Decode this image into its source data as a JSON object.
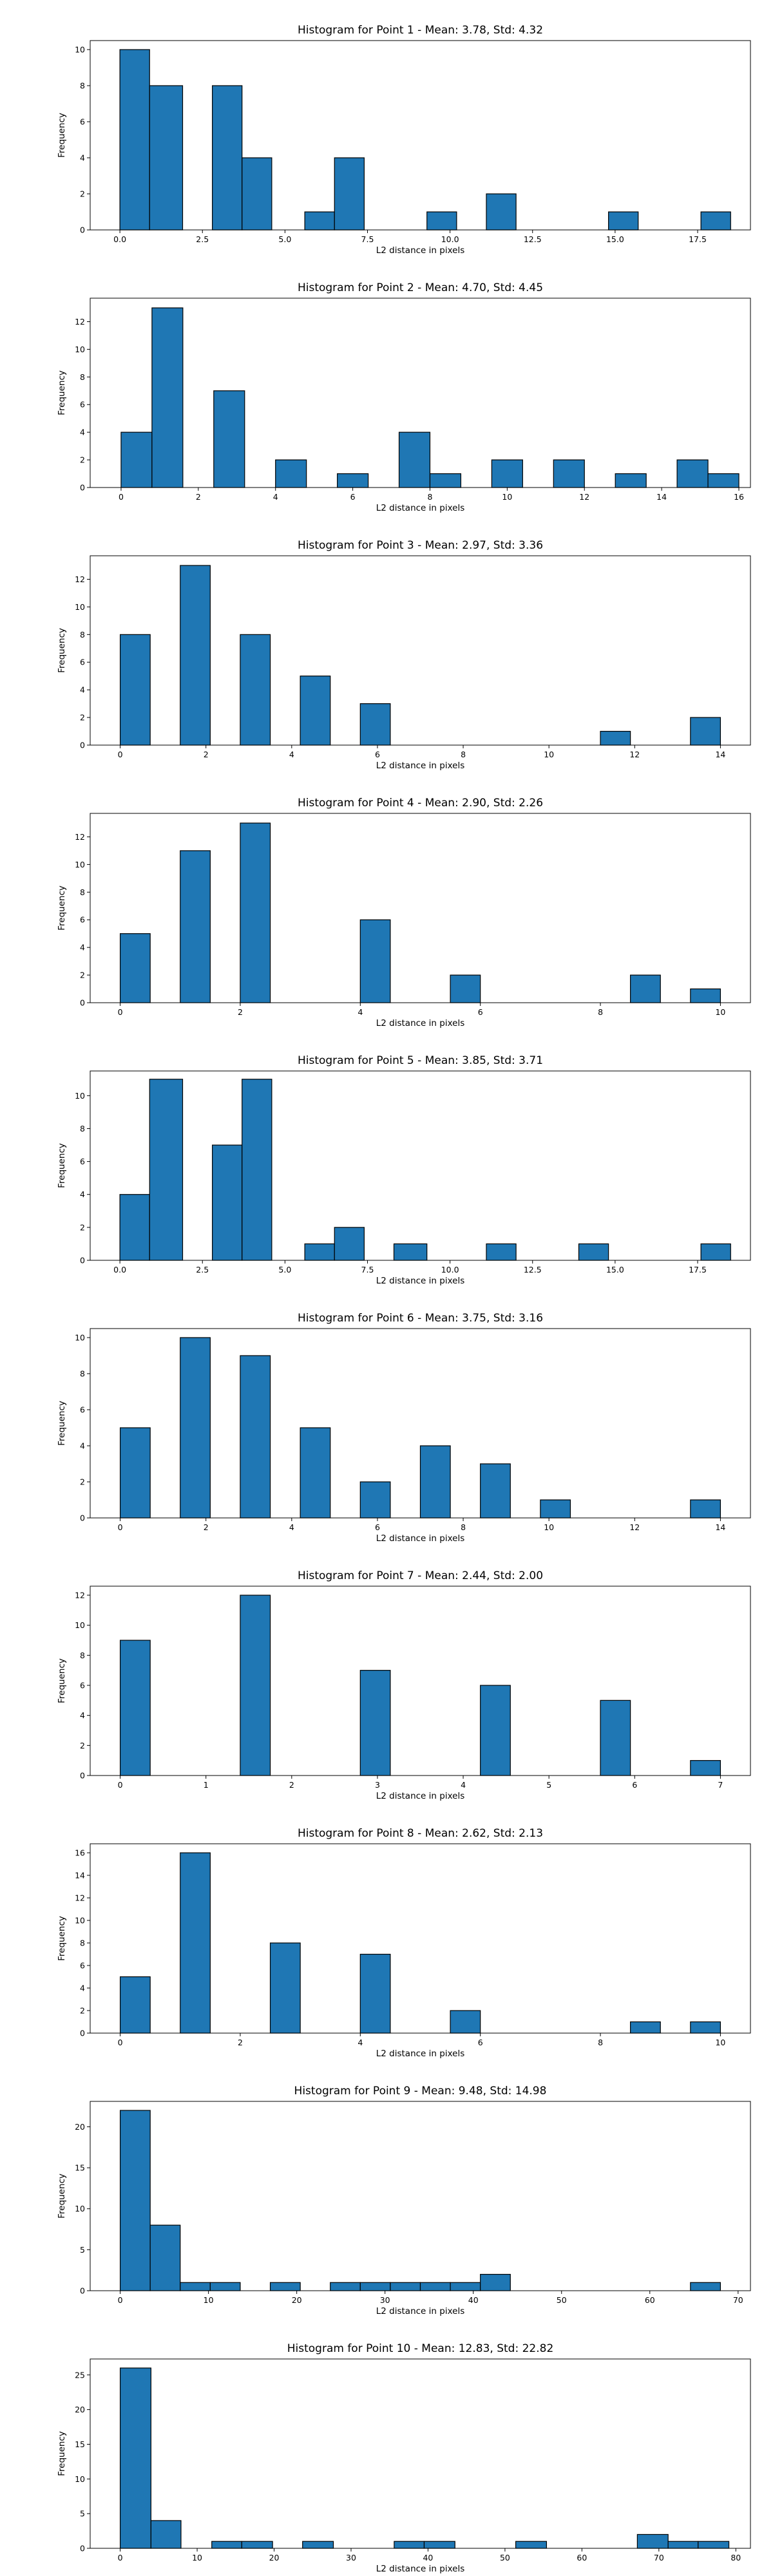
{
  "figure": {
    "background": "#ffffff",
    "bar_color": "#1f77b4",
    "edge_color": "#000000"
  },
  "chart_data": [
    {
      "type": "bar",
      "title": "Histogram for Point 1 - Mean: 3.78, Std: 4.32",
      "xlabel": "L2 distance in pixels",
      "ylabel": "Frequency",
      "xlim": [
        -0.9,
        19.1
      ],
      "ylim": [
        0,
        10.5
      ],
      "xticks": [
        0,
        2.5,
        5,
        7.5,
        10,
        12.5,
        15,
        17.5
      ],
      "xtick_labels": [
        "0.0",
        "2.5",
        "5.0",
        "7.5",
        "10.0",
        "12.5",
        "15.0",
        "17.5"
      ],
      "yticks": [
        0,
        2,
        4,
        6,
        8,
        10
      ],
      "bins": [
        {
          "x0": 0.0,
          "x1": 0.9,
          "count": 10
        },
        {
          "x0": 0.9,
          "x1": 1.9,
          "count": 8
        },
        {
          "x0": 2.8,
          "x1": 3.7,
          "count": 8
        },
        {
          "x0": 3.7,
          "x1": 4.6,
          "count": 4
        },
        {
          "x0": 5.6,
          "x1": 6.5,
          "count": 1
        },
        {
          "x0": 6.5,
          "x1": 7.4,
          "count": 4
        },
        {
          "x0": 9.3,
          "x1": 10.2,
          "count": 1
        },
        {
          "x0": 11.1,
          "x1": 12.0,
          "count": 2
        },
        {
          "x0": 14.8,
          "x1": 15.7,
          "count": 1
        },
        {
          "x0": 17.6,
          "x1": 18.5,
          "count": 1
        }
      ]
    },
    {
      "type": "bar",
      "title": "Histogram for Point 2 - Mean: 4.70, Std: 4.45",
      "xlabel": "L2 distance in pixels",
      "ylabel": "Frequency",
      "xlim": [
        -0.8,
        16.3
      ],
      "ylim": [
        0,
        13.7
      ],
      "xticks": [
        0,
        2,
        4,
        6,
        8,
        10,
        12,
        14,
        16
      ],
      "xtick_labels": [
        "0",
        "2",
        "4",
        "6",
        "8",
        "10",
        "12",
        "14",
        "16"
      ],
      "yticks": [
        0,
        2,
        4,
        6,
        8,
        10,
        12
      ],
      "bins": [
        {
          "x0": 0.0,
          "x1": 0.8,
          "count": 4
        },
        {
          "x0": 0.8,
          "x1": 1.6,
          "count": 13
        },
        {
          "x0": 2.4,
          "x1": 3.2,
          "count": 7
        },
        {
          "x0": 4.0,
          "x1": 4.8,
          "count": 2
        },
        {
          "x0": 5.6,
          "x1": 6.4,
          "count": 1
        },
        {
          "x0": 7.2,
          "x1": 8.0,
          "count": 4
        },
        {
          "x0": 8.0,
          "x1": 8.8,
          "count": 1
        },
        {
          "x0": 9.6,
          "x1": 10.4,
          "count": 2
        },
        {
          "x0": 11.2,
          "x1": 12.0,
          "count": 2
        },
        {
          "x0": 12.8,
          "x1": 13.6,
          "count": 1
        },
        {
          "x0": 14.4,
          "x1": 15.2,
          "count": 2
        },
        {
          "x0": 15.2,
          "x1": 16.0,
          "count": 1
        }
      ]
    },
    {
      "type": "bar",
      "title": "Histogram for Point 3 - Mean: 2.97, Std: 3.36",
      "xlabel": "L2 distance in pixels",
      "ylabel": "Frequency",
      "xlim": [
        -0.7,
        14.7
      ],
      "ylim": [
        0,
        13.7
      ],
      "xticks": [
        0,
        2,
        4,
        6,
        8,
        10,
        12,
        14
      ],
      "xtick_labels": [
        "0",
        "2",
        "4",
        "6",
        "8",
        "10",
        "12",
        "14"
      ],
      "yticks": [
        0,
        2,
        4,
        6,
        8,
        10,
        12
      ],
      "bins": [
        {
          "x0": 0.0,
          "x1": 0.7,
          "count": 8
        },
        {
          "x0": 1.4,
          "x1": 2.1,
          "count": 13
        },
        {
          "x0": 2.8,
          "x1": 3.5,
          "count": 8
        },
        {
          "x0": 4.2,
          "x1": 4.9,
          "count": 5
        },
        {
          "x0": 5.6,
          "x1": 6.3,
          "count": 3
        },
        {
          "x0": 11.2,
          "x1": 11.9,
          "count": 1
        },
        {
          "x0": 13.3,
          "x1": 14.0,
          "count": 2
        }
      ]
    },
    {
      "type": "bar",
      "title": "Histogram for Point 4 - Mean: 2.90, Std: 2.26",
      "xlabel": "L2 distance in pixels",
      "ylabel": "Frequency",
      "xlim": [
        -0.5,
        10.5
      ],
      "ylim": [
        0,
        13.7
      ],
      "xticks": [
        0,
        2,
        4,
        6,
        8,
        10
      ],
      "xtick_labels": [
        "0",
        "2",
        "4",
        "6",
        "8",
        "10"
      ],
      "yticks": [
        0,
        2,
        4,
        6,
        8,
        10,
        12
      ],
      "bins": [
        {
          "x0": 0.0,
          "x1": 0.5,
          "count": 5
        },
        {
          "x0": 1.0,
          "x1": 1.5,
          "count": 11
        },
        {
          "x0": 2.0,
          "x1": 2.5,
          "count": 13
        },
        {
          "x0": 4.0,
          "x1": 4.5,
          "count": 6
        },
        {
          "x0": 5.5,
          "x1": 6.0,
          "count": 2
        },
        {
          "x0": 8.5,
          "x1": 9.0,
          "count": 2
        },
        {
          "x0": 9.5,
          "x1": 10.0,
          "count": 1
        }
      ]
    },
    {
      "type": "bar",
      "title": "Histogram for Point 5 - Mean: 3.85, Std: 3.71",
      "xlabel": "L2 distance in pixels",
      "ylabel": "Frequency",
      "xlim": [
        -0.9,
        19.1
      ],
      "ylim": [
        0,
        11.5
      ],
      "xticks": [
        0,
        2.5,
        5,
        7.5,
        10,
        12.5,
        15,
        17.5
      ],
      "xtick_labels": [
        "0.0",
        "2.5",
        "5.0",
        "7.5",
        "10.0",
        "12.5",
        "15.0",
        "17.5"
      ],
      "yticks": [
        0,
        2,
        4,
        6,
        8,
        10
      ],
      "bins": [
        {
          "x0": 0.0,
          "x1": 0.9,
          "count": 4
        },
        {
          "x0": 0.9,
          "x1": 1.9,
          "count": 11
        },
        {
          "x0": 2.8,
          "x1": 3.7,
          "count": 7
        },
        {
          "x0": 3.7,
          "x1": 4.6,
          "count": 11
        },
        {
          "x0": 5.6,
          "x1": 6.5,
          "count": 1
        },
        {
          "x0": 6.5,
          "x1": 7.4,
          "count": 2
        },
        {
          "x0": 8.3,
          "x1": 9.3,
          "count": 1
        },
        {
          "x0": 11.1,
          "x1": 12.0,
          "count": 1
        },
        {
          "x0": 13.9,
          "x1": 14.8,
          "count": 1
        },
        {
          "x0": 17.6,
          "x1": 18.5,
          "count": 1
        }
      ]
    },
    {
      "type": "bar",
      "title": "Histogram for Point 6 - Mean: 3.75, Std: 3.16",
      "xlabel": "L2 distance in pixels",
      "ylabel": "Frequency",
      "xlim": [
        -0.7,
        14.7
      ],
      "ylim": [
        0,
        10.5
      ],
      "xticks": [
        0,
        2,
        4,
        6,
        8,
        10,
        12,
        14
      ],
      "xtick_labels": [
        "0",
        "2",
        "4",
        "6",
        "8",
        "10",
        "12",
        "14"
      ],
      "yticks": [
        0,
        2,
        4,
        6,
        8,
        10
      ],
      "bins": [
        {
          "x0": 0.0,
          "x1": 0.7,
          "count": 5
        },
        {
          "x0": 1.4,
          "x1": 2.1,
          "count": 10
        },
        {
          "x0": 2.8,
          "x1": 3.5,
          "count": 9
        },
        {
          "x0": 4.2,
          "x1": 4.9,
          "count": 5
        },
        {
          "x0": 5.6,
          "x1": 6.3,
          "count": 2
        },
        {
          "x0": 7.0,
          "x1": 7.7,
          "count": 4
        },
        {
          "x0": 8.4,
          "x1": 9.1,
          "count": 3
        },
        {
          "x0": 9.8,
          "x1": 10.5,
          "count": 1
        },
        {
          "x0": 13.3,
          "x1": 14.0,
          "count": 1
        }
      ]
    },
    {
      "type": "bar",
      "title": "Histogram for Point 7 - Mean: 2.44, Std: 2.00",
      "xlabel": "L2 distance in pixels",
      "ylabel": "Frequency",
      "xlim": [
        -0.35,
        7.35
      ],
      "ylim": [
        0,
        12.6
      ],
      "xticks": [
        0,
        1,
        2,
        3,
        4,
        5,
        6,
        7
      ],
      "xtick_labels": [
        "0",
        "1",
        "2",
        "3",
        "4",
        "5",
        "6",
        "7"
      ],
      "yticks": [
        0,
        2,
        4,
        6,
        8,
        10,
        12
      ],
      "bins": [
        {
          "x0": 0.0,
          "x1": 0.35,
          "count": 9
        },
        {
          "x0": 1.4,
          "x1": 1.75,
          "count": 12
        },
        {
          "x0": 2.8,
          "x1": 3.15,
          "count": 7
        },
        {
          "x0": 4.2,
          "x1": 4.55,
          "count": 6
        },
        {
          "x0": 5.6,
          "x1": 5.95,
          "count": 5
        },
        {
          "x0": 6.65,
          "x1": 7.0,
          "count": 1
        }
      ]
    },
    {
      "type": "bar",
      "title": "Histogram for Point 8 - Mean: 2.62, Std: 2.13",
      "xlabel": "L2 distance in pixels",
      "ylabel": "Frequency",
      "xlim": [
        -0.5,
        10.5
      ],
      "ylim": [
        0,
        16.8
      ],
      "xticks": [
        0,
        2,
        4,
        6,
        8,
        10
      ],
      "xtick_labels": [
        "0",
        "2",
        "4",
        "6",
        "8",
        "10"
      ],
      "yticks": [
        0,
        2,
        4,
        6,
        8,
        10,
        12,
        14,
        16
      ],
      "bins": [
        {
          "x0": 0.0,
          "x1": 0.5,
          "count": 5
        },
        {
          "x0": 1.0,
          "x1": 1.5,
          "count": 16
        },
        {
          "x0": 2.5,
          "x1": 3.0,
          "count": 8
        },
        {
          "x0": 4.0,
          "x1": 4.5,
          "count": 7
        },
        {
          "x0": 5.5,
          "x1": 6.0,
          "count": 2
        },
        {
          "x0": 8.5,
          "x1": 9.0,
          "count": 1
        },
        {
          "x0": 9.5,
          "x1": 10.0,
          "count": 1
        }
      ]
    },
    {
      "type": "bar",
      "title": "Histogram for Point 9 - Mean: 9.48, Std: 14.98",
      "xlabel": "L2 distance in pixels",
      "ylabel": "Frequency",
      "xlim": [
        -3.4,
        71.4
      ],
      "ylim": [
        0,
        23.1
      ],
      "xticks": [
        0,
        10,
        20,
        30,
        40,
        50,
        60,
        70
      ],
      "xtick_labels": [
        "0",
        "10",
        "20",
        "30",
        "40",
        "50",
        "60",
        "70"
      ],
      "yticks": [
        0,
        5,
        10,
        15,
        20
      ],
      "bins": [
        {
          "x0": 0.0,
          "x1": 3.4,
          "count": 22
        },
        {
          "x0": 3.4,
          "x1": 6.8,
          "count": 8
        },
        {
          "x0": 6.8,
          "x1": 10.2,
          "count": 1
        },
        {
          "x0": 10.2,
          "x1": 13.6,
          "count": 1
        },
        {
          "x0": 17.0,
          "x1": 20.4,
          "count": 1
        },
        {
          "x0": 23.8,
          "x1": 27.2,
          "count": 1
        },
        {
          "x0": 27.2,
          "x1": 30.6,
          "count": 1
        },
        {
          "x0": 30.6,
          "x1": 34.0,
          "count": 1
        },
        {
          "x0": 34.0,
          "x1": 37.4,
          "count": 1
        },
        {
          "x0": 37.4,
          "x1": 40.8,
          "count": 1
        },
        {
          "x0": 40.8,
          "x1": 44.2,
          "count": 2
        },
        {
          "x0": 64.6,
          "x1": 68.0,
          "count": 1
        }
      ]
    },
    {
      "type": "bar",
      "title": "Histogram for Point 10 - Mean: 12.83, Std: 22.82",
      "xlabel": "L2 distance in pixels",
      "ylabel": "Frequency",
      "xlim": [
        -3.9,
        81.9
      ],
      "ylim": [
        0,
        27.3
      ],
      "xticks": [
        0,
        10,
        20,
        30,
        40,
        50,
        60,
        70,
        80
      ],
      "xtick_labels": [
        "0",
        "10",
        "20",
        "30",
        "40",
        "50",
        "60",
        "70",
        "80"
      ],
      "yticks": [
        0,
        5,
        10,
        15,
        20,
        25
      ],
      "bins": [
        {
          "x0": 0.0,
          "x1": 4.0,
          "count": 26
        },
        {
          "x0": 4.0,
          "x1": 7.9,
          "count": 4
        },
        {
          "x0": 11.9,
          "x1": 15.8,
          "count": 1
        },
        {
          "x0": 15.8,
          "x1": 19.8,
          "count": 1
        },
        {
          "x0": 23.7,
          "x1": 27.7,
          "count": 1
        },
        {
          "x0": 35.6,
          "x1": 39.5,
          "count": 1
        },
        {
          "x0": 39.5,
          "x1": 43.5,
          "count": 1
        },
        {
          "x0": 51.4,
          "x1": 55.4,
          "count": 1
        },
        {
          "x0": 67.2,
          "x1": 71.2,
          "count": 2
        },
        {
          "x0": 71.2,
          "x1": 75.1,
          "count": 1
        },
        {
          "x0": 75.1,
          "x1": 79.1,
          "count": 1
        }
      ]
    }
  ]
}
